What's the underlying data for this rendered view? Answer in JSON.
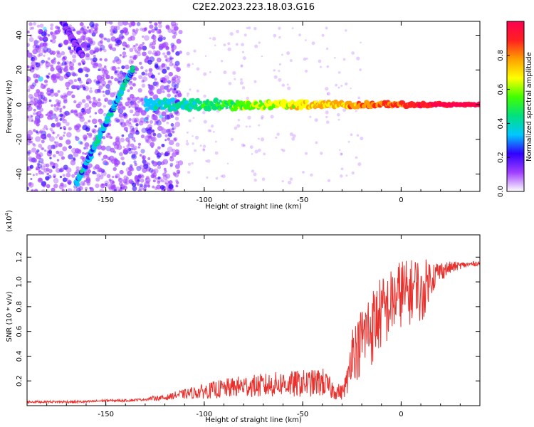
{
  "figure_title": "C2E2.2023.223.18.03.G16",
  "colors": {
    "snr_line": "#e8302c",
    "frame": "#000000"
  },
  "chart_data": [
    {
      "type": "heatmap",
      "title": "C2E2.2023.223.18.03.G16",
      "xlabel": "Height of straight line (km)",
      "ylabel": "Frequency (Hz)",
      "xlim": [
        -190,
        40
      ],
      "ylim": [
        -50,
        48
      ],
      "xticks": [
        -150,
        -100,
        -50,
        0
      ],
      "yticks": [
        -40,
        -20,
        0,
        20,
        40
      ],
      "grid": false,
      "colorbar": {
        "label": "Normalized spectral amplitude",
        "range": [
          0,
          1
        ],
        "ticks": [
          "0.0",
          "0.2",
          "0.4",
          "0.6",
          "0.8"
        ],
        "colormap": [
          "#ffffff",
          "#a040ff",
          "#3000ff",
          "#00c8ff",
          "#00e080",
          "#40ff00",
          "#ffff00",
          "#ffa000",
          "#ff2020",
          "#ff0050"
        ]
      },
      "features": [
        {
          "name": "oblique trace",
          "from": [
            -165,
            -46
          ],
          "to": [
            -136,
            22
          ],
          "amplitude": 0.35
        },
        {
          "name": "main signal",
          "x_start": -130,
          "x_end": 40,
          "frequency": 0,
          "amplitude_at_start": 0.3,
          "amplitude_at_end": 1.0
        },
        {
          "name": "upper trace",
          "from": [
            -172,
            48
          ],
          "to": [
            -162,
            28
          ],
          "amplitude": 0.15
        }
      ]
    },
    {
      "type": "line",
      "xlabel": "Height of straight line (km)",
      "ylabel": "SNR (10 * v/v)",
      "y_scale_label": "(x10",
      "y_scale_exponent": "4",
      "y_scale_suffix": ")",
      "xlim": [
        -190,
        40
      ],
      "ylim": [
        0,
        1.38
      ],
      "xticks": [
        -150,
        -100,
        -50,
        0
      ],
      "yticks": [
        0.2,
        0.4,
        0.6,
        0.8,
        1.0,
        1.2
      ],
      "ytick_labels": [
        "0.2",
        "0.4",
        "0.6",
        "0.8",
        "1.0",
        "1.2"
      ],
      "grid": false,
      "series": [
        {
          "x": [
            -190,
            -180,
            -170,
            -160,
            -150,
            -140,
            -130,
            -125,
            -120,
            -115,
            -110,
            -105,
            -100,
            -95,
            -90,
            -85,
            -80,
            -75,
            -70,
            -65,
            -60,
            -55,
            -50,
            -45,
            -40,
            -35,
            -30,
            -27,
            -25,
            -22,
            -20,
            -17,
            -15,
            -12,
            -10,
            -7,
            -5,
            -2,
            0,
            3,
            6,
            8,
            10,
            13,
            15,
            20,
            25,
            30,
            35,
            40
          ],
          "y": [
            0.03,
            0.03,
            0.03,
            0.03,
            0.04,
            0.04,
            0.05,
            0.06,
            0.06,
            0.08,
            0.09,
            0.1,
            0.11,
            0.12,
            0.13,
            0.14,
            0.15,
            0.15,
            0.15,
            0.16,
            0.17,
            0.16,
            0.17,
            0.17,
            0.18,
            0.12,
            0.1,
            0.2,
            0.45,
            0.42,
            0.52,
            0.58,
            0.6,
            0.68,
            0.72,
            0.75,
            0.8,
            0.85,
            0.9,
            0.86,
            0.92,
            0.98,
            0.82,
            0.98,
            1.02,
            1.08,
            1.11,
            1.13,
            1.14,
            1.15
          ],
          "noise": [
            0.01,
            0.01,
            0.01,
            0.01,
            0.01,
            0.01,
            0.01,
            0.02,
            0.02,
            0.03,
            0.04,
            0.05,
            0.06,
            0.07,
            0.08,
            0.08,
            0.09,
            0.09,
            0.1,
            0.1,
            0.1,
            0.11,
            0.11,
            0.11,
            0.12,
            0.08,
            0.06,
            0.12,
            0.22,
            0.25,
            0.28,
            0.3,
            0.32,
            0.3,
            0.3,
            0.28,
            0.28,
            0.25,
            0.3,
            0.28,
            0.25,
            0.22,
            0.25,
            0.2,
            0.15,
            0.08,
            0.05,
            0.03,
            0.02,
            0.02
          ]
        }
      ]
    }
  ]
}
